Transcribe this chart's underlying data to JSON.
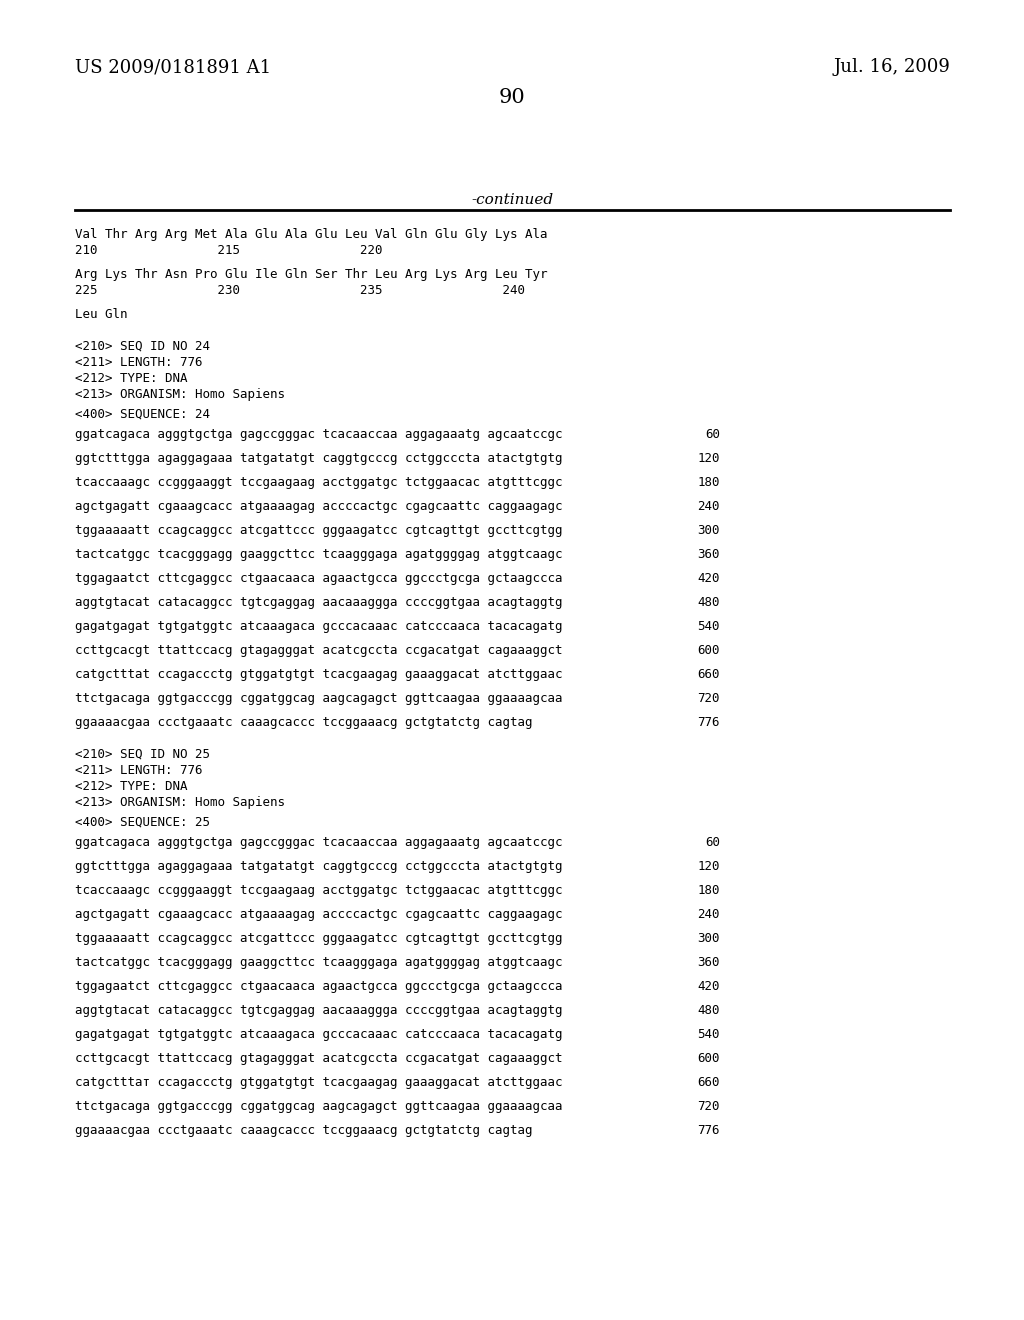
{
  "page_left": "US 2009/0181891 A1",
  "page_right": "Jul. 16, 2009",
  "page_number": "90",
  "continued_label": "-continued",
  "background_color": "#ffffff",
  "text_color": "#000000",
  "seq24_header": [
    "<210> SEQ ID NO 24",
    "<211> LENGTH: 776",
    "<212> TYPE: DNA",
    "<213> ORGANISM: Homo Sapiens"
  ],
  "seq24_label": "<400> SEQUENCE: 24",
  "seq24_data": [
    {
      "seq": "ggatcagaca agggtgctga gagccgggac tcacaaccaa aggagaaatg agcaatccgc",
      "num": "60"
    },
    {
      "seq": "ggtctttgga agaggagaaa tatgatatgt caggtgcccg cctggcccta atactgtgtg",
      "num": "120"
    },
    {
      "seq": "tcaccaaagc ccgggaaggt tccgaagaag acctggatgc tctggaacac atgtttcggc",
      "num": "180"
    },
    {
      "seq": "agctgagatt cgaaagcacc atgaaaagag accccactgc cgagcaattc caggaagagc",
      "num": "240"
    },
    {
      "seq": "tggaaaaatt ccagcaggcc atcgattccc gggaagatcc cgtcagttgt gccttcgtgg",
      "num": "300"
    },
    {
      "seq": "tactcatggc tcacgggagg gaaggcttcc tcaagggaga agatggggag atggtcaagc",
      "num": "360"
    },
    {
      "seq": "tggagaatct cttcgaggcc ctgaacaaca agaactgcca ggccctgcga gctaagccca",
      "num": "420"
    },
    {
      "seq": "aggtgtacat catacaggcc tgtcgaggag aacaaaggga ccccggtgaa acagtaggtg",
      "num": "480"
    },
    {
      "seq": "gagatgagat tgtgatggtc atcaaagaca gcccacaaac catcccaaca tacacagatg",
      "num": "540"
    },
    {
      "seq": "ccttgcacgt ttattccacg gtagagggat acatcgccta ccgacatgat cagaaaggct",
      "num": "600"
    },
    {
      "seq": "catgctttat ccagaccctg gtggatgtgt tcacgaagag gaaaggacat atcttggaac",
      "num": "660"
    },
    {
      "seq": "ttctgacaga ggtgacccgg cggatggcag aagcagagct ggttcaagaa ggaaaagcaa",
      "num": "720"
    },
    {
      "seq": "ggaaaacgaa ccctgaaatc caaagcaccc tccggaaacg gctgtatctg cagtag",
      "num": "776"
    }
  ],
  "seq25_header": [
    "<210> SEQ ID NO 25",
    "<211> LENGTH: 776",
    "<212> TYPE: DNA",
    "<213> ORGANISM: Homo Sapiens"
  ],
  "seq25_label": "<400> SEQUENCE: 25",
  "seq25_data": [
    {
      "seq": "ggatcagaca agggtgctga gagccgggac tcacaaccaa aggagaaatg agcaatccgc",
      "num": "60"
    },
    {
      "seq": "ggtctttgga agaggagaaa tatgatatgt caggtgcccg cctggcccta atactgtgtg",
      "num": "120"
    },
    {
      "seq": "tcaccaaagc ccgggaaggt tccgaagaag acctggatgc tctggaacac atgtttcggc",
      "num": "180"
    },
    {
      "seq": "agctgagatt cgaaagcacc atgaaaagag accccactgc cgagcaattc caggaagagc",
      "num": "240"
    },
    {
      "seq": "tggaaaaatt ccagcaggcc atcgattccc gggaagatcc cgtcagttgt gccttcgtgg",
      "num": "300"
    },
    {
      "seq": "tactcatggc tcacgggagg gaaggcttcc tcaagggaga agatggggag atggtcaagc",
      "num": "360"
    },
    {
      "seq": "tggagaatct cttcgaggcc ctgaacaaca agaactgcca ggccctgcga gctaagccca",
      "num": "420"
    },
    {
      "seq": "aggtgtacat catacaggcc tgtcgaggag aacaaaggga ccccggtgaa acagtaggtg",
      "num": "480"
    },
    {
      "seq": "gagatgagat tgtgatggtc atcaaagaca gcccacaaac catcccaaca tacacagatg",
      "num": "540"
    },
    {
      "seq": "ccttgcacgt ttattccacg gtagagggat acatcgccta ccgacatgat cagaaaggct",
      "num": "600"
    },
    {
      "seq": "catgctttат ccagaccctg gtggatgtgt tcacgaagag gaaaggacat atcttggaac",
      "num": "660"
    },
    {
      "seq": "ttctgacaga ggtgacccgg cggatggcag aagcagagct ggttcaagaa ggaaaagcaa",
      "num": "720"
    },
    {
      "seq": "ggaaaacgaa ccctgaaatc caaagcaccc tccggaaacg gctgtatctg cagtag",
      "num": "776"
    }
  ]
}
